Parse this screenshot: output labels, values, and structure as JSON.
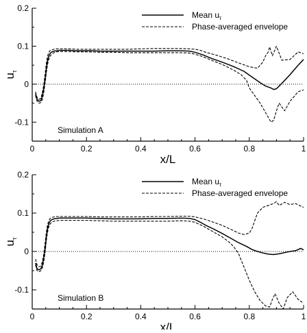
{
  "chart_data": [
    {
      "type": "line",
      "panel_label": "Simulation A",
      "xlabel": "x/L",
      "ylabel": "u",
      "ylabel_sub": "τ",
      "xlim": [
        0,
        1
      ],
      "ylim": [
        -0.15,
        0.2
      ],
      "xticks": [
        0,
        0.2,
        0.4,
        0.6,
        0.8,
        1
      ],
      "xtick_labels": [
        "0",
        "0.2",
        "0.4",
        "0.6",
        "0.8",
        "1"
      ],
      "yticks": [
        -0.1,
        0,
        0.1,
        0.2
      ],
      "ytick_labels": [
        "-0.1",
        "0",
        "0.1",
        "0.2"
      ],
      "zero_line": true,
      "grid": false,
      "legend_position": "top-right",
      "series": [
        {
          "name": "Mean u",
          "name_sub": "τ",
          "style": "solid",
          "x": [
            0.012,
            0.018,
            0.025,
            0.032,
            0.038,
            0.043,
            0.048,
            0.052,
            0.056,
            0.06,
            0.065,
            0.07,
            0.08,
            0.09,
            0.1,
            0.12,
            0.14,
            0.16,
            0.18,
            0.2,
            0.22,
            0.25,
            0.3,
            0.35,
            0.4,
            0.45,
            0.5,
            0.55,
            0.58,
            0.6,
            0.63,
            0.66,
            0.7,
            0.74,
            0.78,
            0.8,
            0.82,
            0.84,
            0.86,
            0.88,
            0.89,
            0.9,
            0.92,
            0.95,
            0.98,
            1.0
          ],
          "y": [
            -0.025,
            -0.04,
            -0.045,
            -0.043,
            -0.03,
            -0.01,
            0.015,
            0.04,
            0.06,
            0.072,
            0.08,
            0.084,
            0.087,
            0.088,
            0.089,
            0.089,
            0.089,
            0.088,
            0.088,
            0.088,
            0.088,
            0.087,
            0.087,
            0.087,
            0.087,
            0.087,
            0.088,
            0.088,
            0.087,
            0.084,
            0.077,
            0.068,
            0.058,
            0.047,
            0.034,
            0.024,
            0.014,
            0.004,
            -0.005,
            -0.01,
            -0.014,
            -0.012,
            0.002,
            0.025,
            0.05,
            0.065
          ]
        },
        {
          "name": "Phase-averaged envelope",
          "style": "dashed",
          "role": "upper",
          "x": [
            0.012,
            0.018,
            0.025,
            0.032,
            0.038,
            0.043,
            0.048,
            0.052,
            0.056,
            0.06,
            0.065,
            0.07,
            0.08,
            0.09,
            0.1,
            0.12,
            0.14,
            0.16,
            0.18,
            0.2,
            0.25,
            0.3,
            0.35,
            0.4,
            0.45,
            0.5,
            0.55,
            0.58,
            0.6,
            0.62,
            0.64,
            0.68,
            0.72,
            0.76,
            0.8,
            0.83,
            0.85,
            0.86,
            0.87,
            0.875,
            0.885,
            0.9,
            0.92,
            0.95,
            0.98,
            1.0
          ],
          "y": [
            -0.02,
            -0.035,
            -0.04,
            -0.037,
            -0.02,
            0.0,
            0.03,
            0.055,
            0.072,
            0.082,
            0.088,
            0.09,
            0.092,
            0.093,
            0.093,
            0.093,
            0.093,
            0.092,
            0.092,
            0.092,
            0.092,
            0.092,
            0.092,
            0.093,
            0.094,
            0.094,
            0.094,
            0.093,
            0.092,
            0.089,
            0.084,
            0.076,
            0.067,
            0.056,
            0.046,
            0.042,
            0.058,
            0.075,
            0.085,
            0.098,
            0.075,
            0.1,
            0.063,
            0.065,
            0.085,
            0.08
          ]
        },
        {
          "name": "",
          "style": "dashed",
          "role": "lower",
          "x": [
            0.012,
            0.018,
            0.025,
            0.032,
            0.038,
            0.043,
            0.048,
            0.052,
            0.056,
            0.06,
            0.065,
            0.07,
            0.08,
            0.09,
            0.1,
            0.12,
            0.14,
            0.16,
            0.18,
            0.2,
            0.25,
            0.3,
            0.35,
            0.4,
            0.45,
            0.5,
            0.55,
            0.58,
            0.6,
            0.63,
            0.66,
            0.7,
            0.74,
            0.77,
            0.79,
            0.8,
            0.82,
            0.84,
            0.86,
            0.88,
            0.89,
            0.9,
            0.91,
            0.92,
            0.93,
            0.95,
            0.98,
            1.0
          ],
          "y": [
            -0.03,
            -0.045,
            -0.05,
            -0.048,
            -0.04,
            -0.02,
            0.005,
            0.03,
            0.05,
            0.063,
            0.072,
            0.078,
            0.083,
            0.085,
            0.086,
            0.086,
            0.086,
            0.085,
            0.085,
            0.085,
            0.084,
            0.084,
            0.083,
            0.083,
            0.083,
            0.083,
            0.083,
            0.082,
            0.079,
            0.072,
            0.063,
            0.052,
            0.038,
            0.025,
            0.01,
            -0.01,
            -0.03,
            -0.05,
            -0.075,
            -0.1,
            -0.095,
            -0.07,
            -0.05,
            -0.06,
            -0.07,
            -0.045,
            -0.02,
            -0.015
          ]
        }
      ]
    },
    {
      "type": "line",
      "panel_label": "Simulation B",
      "xlabel": "x/L",
      "ylabel": "u",
      "ylabel_sub": "τ",
      "xlim": [
        0,
        1
      ],
      "ylim": [
        -0.15,
        0.2
      ],
      "xticks": [
        0,
        0.2,
        0.4,
        0.6,
        0.8,
        1
      ],
      "xtick_labels": [
        "0",
        "0.2",
        "0.4",
        "0.6",
        "0.8",
        "1"
      ],
      "yticks": [
        -0.1,
        0,
        0.1,
        0.2
      ],
      "ytick_labels": [
        "-0.1",
        "0",
        "0.1",
        "0.2"
      ],
      "zero_line": true,
      "grid": false,
      "legend_position": "top-right",
      "series": [
        {
          "name": "Mean u",
          "name_sub": "τ",
          "style": "solid",
          "x": [
            0.012,
            0.018,
            0.025,
            0.032,
            0.038,
            0.043,
            0.048,
            0.052,
            0.056,
            0.06,
            0.065,
            0.07,
            0.08,
            0.09,
            0.1,
            0.12,
            0.14,
            0.16,
            0.18,
            0.2,
            0.25,
            0.3,
            0.35,
            0.4,
            0.45,
            0.5,
            0.55,
            0.58,
            0.6,
            0.62,
            0.64,
            0.67,
            0.7,
            0.73,
            0.76,
            0.79,
            0.81,
            0.83,
            0.85,
            0.87,
            0.89,
            0.91,
            0.93,
            0.95,
            0.97,
            0.99,
            1.0
          ],
          "y": [
            -0.03,
            -0.045,
            -0.048,
            -0.045,
            -0.035,
            -0.015,
            0.01,
            0.038,
            0.058,
            0.07,
            0.078,
            0.082,
            0.085,
            0.086,
            0.087,
            0.087,
            0.087,
            0.087,
            0.087,
            0.087,
            0.086,
            0.085,
            0.085,
            0.085,
            0.086,
            0.086,
            0.087,
            0.086,
            0.083,
            0.076,
            0.068,
            0.058,
            0.047,
            0.035,
            0.023,
            0.013,
            0.005,
            0.0,
            -0.004,
            -0.007,
            -0.008,
            -0.006,
            -0.003,
            0.0,
            0.002,
            0.008,
            0.004
          ]
        },
        {
          "name": "Phase-averaged envelope",
          "style": "dashed",
          "role": "upper",
          "x": [
            0.012,
            0.018,
            0.025,
            0.032,
            0.038,
            0.043,
            0.048,
            0.052,
            0.056,
            0.06,
            0.065,
            0.07,
            0.08,
            0.09,
            0.1,
            0.12,
            0.14,
            0.16,
            0.18,
            0.2,
            0.25,
            0.3,
            0.35,
            0.4,
            0.45,
            0.5,
            0.55,
            0.58,
            0.6,
            0.63,
            0.66,
            0.7,
            0.74,
            0.76,
            0.78,
            0.8,
            0.81,
            0.82,
            0.83,
            0.85,
            0.87,
            0.89,
            0.9,
            0.91,
            0.93,
            0.95,
            0.97,
            0.99,
            1.0
          ],
          "y": [
            -0.02,
            -0.035,
            -0.04,
            -0.038,
            -0.025,
            -0.005,
            0.025,
            0.05,
            0.068,
            0.078,
            0.085,
            0.088,
            0.09,
            0.091,
            0.091,
            0.091,
            0.091,
            0.091,
            0.091,
            0.091,
            0.09,
            0.09,
            0.09,
            0.09,
            0.091,
            0.091,
            0.092,
            0.092,
            0.09,
            0.085,
            0.078,
            0.068,
            0.055,
            0.048,
            0.044,
            0.048,
            0.06,
            0.08,
            0.1,
            0.115,
            0.12,
            0.125,
            0.13,
            0.12,
            0.128,
            0.122,
            0.125,
            0.118,
            0.115
          ]
        },
        {
          "name": "",
          "style": "dashed",
          "role": "lower",
          "x": [
            0.012,
            0.018,
            0.025,
            0.032,
            0.038,
            0.043,
            0.048,
            0.052,
            0.056,
            0.06,
            0.065,
            0.07,
            0.08,
            0.09,
            0.1,
            0.12,
            0.14,
            0.16,
            0.18,
            0.2,
            0.25,
            0.3,
            0.35,
            0.4,
            0.45,
            0.5,
            0.55,
            0.58,
            0.6,
            0.63,
            0.66,
            0.7,
            0.73,
            0.745,
            0.76,
            0.78,
            0.8,
            0.82,
            0.84,
            0.86,
            0.875,
            0.885,
            0.895,
            0.91,
            0.925,
            0.94,
            0.96,
            0.98,
            1.0
          ],
          "y": [
            -0.035,
            -0.05,
            -0.053,
            -0.05,
            -0.042,
            -0.025,
            0.0,
            0.028,
            0.048,
            0.062,
            0.07,
            0.075,
            0.079,
            0.08,
            0.081,
            0.081,
            0.081,
            0.081,
            0.081,
            0.081,
            0.08,
            0.079,
            0.079,
            0.079,
            0.079,
            0.079,
            0.08,
            0.079,
            0.076,
            0.066,
            0.054,
            0.038,
            0.022,
            0.01,
            -0.005,
            -0.04,
            -0.075,
            -0.105,
            -0.128,
            -0.142,
            -0.145,
            -0.125,
            -0.11,
            -0.135,
            -0.15,
            -0.12,
            -0.105,
            -0.125,
            -0.135
          ]
        }
      ]
    }
  ]
}
